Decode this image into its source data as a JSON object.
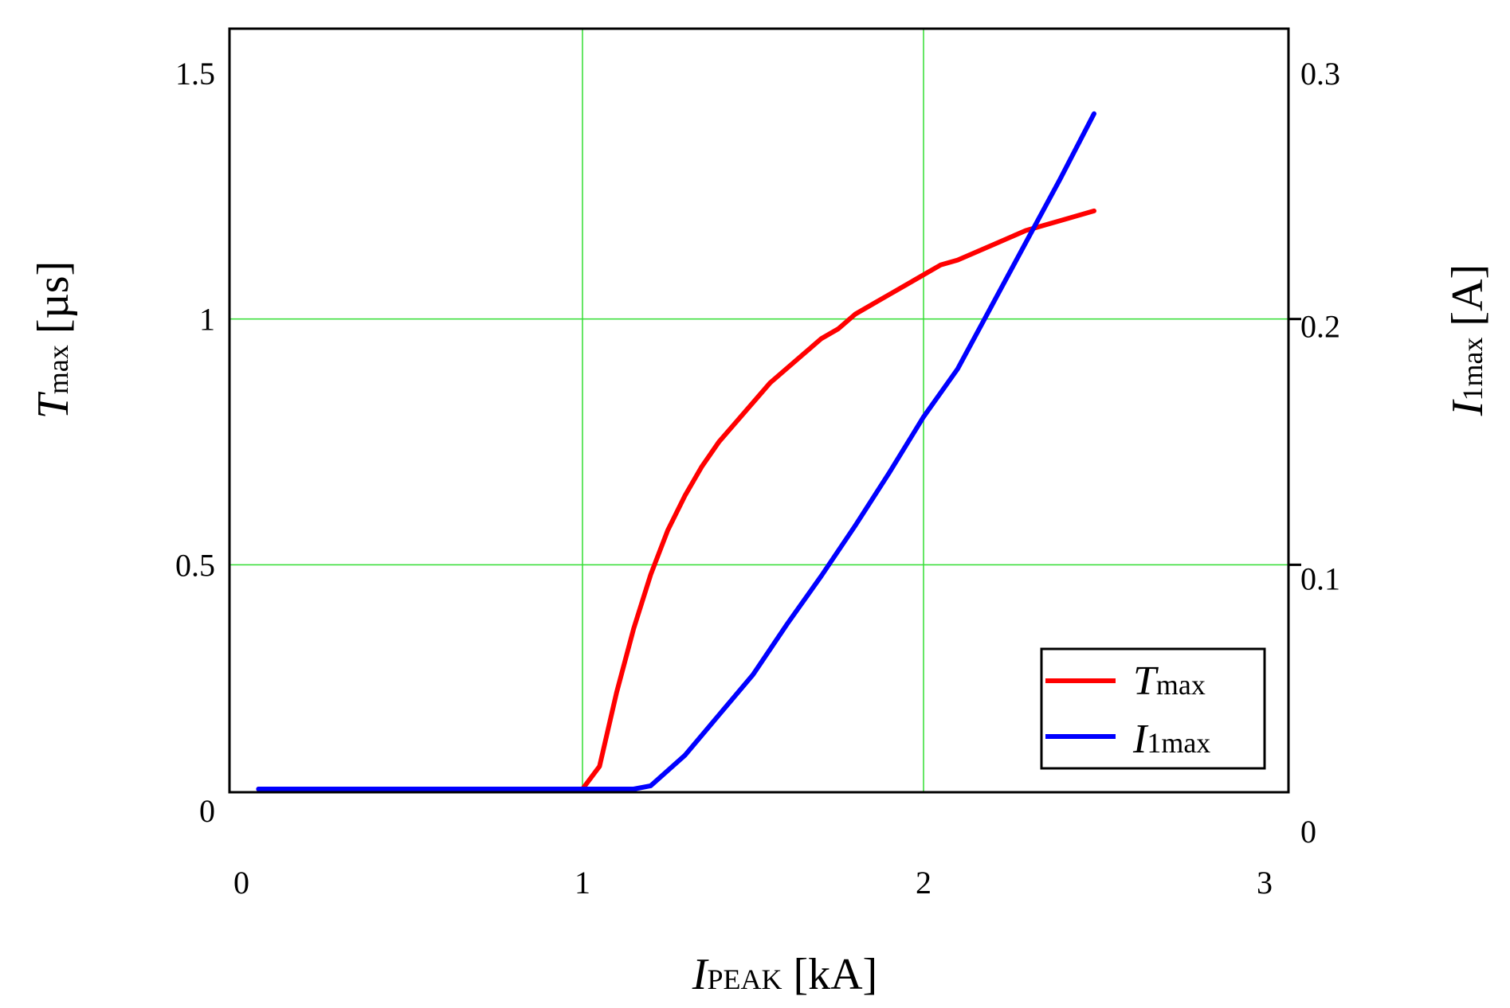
{
  "chart_data": {
    "type": "line",
    "x_axis": {
      "label_main": "I",
      "label_sub": "PEAK",
      "label_unit": "[kA]",
      "range": [
        0,
        3
      ],
      "ticks": [
        "0",
        "1",
        "2",
        "3"
      ],
      "tick_values": [
        0,
        1,
        2,
        3
      ],
      "grid_values": [
        1,
        2
      ]
    },
    "y_axis_left": {
      "label_main": "T",
      "label_sub": "max",
      "label_unit": "[µs]",
      "range": [
        0,
        1.5
      ],
      "ticks": [
        "0",
        "0.5",
        "1",
        "1.5"
      ],
      "tick_values": [
        0,
        0.5,
        1,
        1.5
      ],
      "grid_values": [
        0.5,
        1
      ]
    },
    "y_axis_right": {
      "label_main": "I",
      "label_sub": "1max",
      "label_unit": "[A]",
      "range": [
        0,
        0.3
      ],
      "ticks": [
        "0",
        "0.1",
        "0.2",
        "0.3"
      ],
      "tick_values": [
        0,
        0.1,
        0.2,
        0.3
      ]
    },
    "grid": true,
    "grid_color": "#33dd33",
    "legend_position": "bottom-right",
    "series": [
      {
        "name_main": "T",
        "name_sub": "max",
        "axis": "left",
        "color": "#ff0000",
        "x": [
          0.05,
          0.5,
          0.9,
          1.0,
          1.05,
          1.1,
          1.15,
          1.2,
          1.25,
          1.3,
          1.35,
          1.4,
          1.45,
          1.5,
          1.55,
          1.6,
          1.65,
          1.7,
          1.75,
          1.8,
          1.85,
          1.9,
          1.95,
          2.0,
          2.05,
          2.1,
          2.2,
          2.3,
          2.4,
          2.5
        ],
        "y": [
          0.02,
          0.02,
          0.02,
          0.02,
          0.09,
          0.24,
          0.37,
          0.48,
          0.57,
          0.64,
          0.7,
          0.75,
          0.79,
          0.83,
          0.87,
          0.9,
          0.93,
          0.96,
          0.98,
          1.01,
          1.03,
          1.05,
          1.07,
          1.09,
          1.11,
          1.12,
          1.15,
          1.18,
          1.2,
          1.22
        ]
      },
      {
        "name_main": "I",
        "name_sub": "1max",
        "axis": "right",
        "color": "#0000ff",
        "x": [
          0.05,
          0.15,
          0.3,
          0.5,
          0.7,
          0.85,
          0.95,
          1.0,
          1.05,
          1.1,
          1.15,
          1.2,
          1.3,
          1.4,
          1.5,
          1.6,
          1.7,
          1.8,
          1.9,
          2.0,
          2.1,
          2.2,
          2.3,
          2.4,
          2.5
        ],
        "y": [
          0.001,
          0.002,
          0.003,
          0.004,
          0.005,
          0.005,
          0.006,
          0.006,
          0.007,
          0.009,
          0.013,
          0.018,
          0.03,
          0.046,
          0.062,
          0.082,
          0.101,
          0.121,
          0.142,
          0.164,
          0.183,
          0.208,
          0.233,
          0.258,
          0.284
        ]
      }
    ]
  }
}
